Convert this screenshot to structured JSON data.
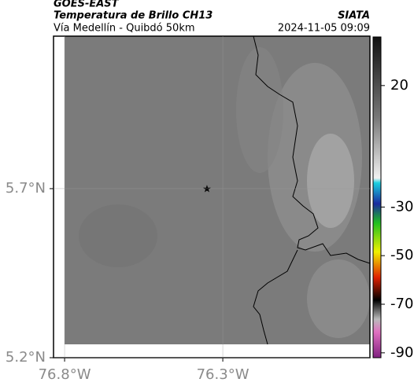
{
  "header": {
    "title": "GOES-EAST",
    "subtitle": "Temperatura de Brillo CH13",
    "source": "SIATA",
    "region": "Vía Medellín - Quibdó 50km",
    "datetime": "2024-11-05 09:09"
  },
  "map": {
    "xlim": [
      -76.835,
      -75.835
    ],
    "ylim": [
      5.2,
      6.151
    ],
    "xticks": [
      {
        "value": -76.8,
        "label": "76.8°W"
      },
      {
        "value": -76.3,
        "label": "76.3°W"
      }
    ],
    "yticks": [
      {
        "value": 5.2,
        "label": "5.2°N"
      },
      {
        "value": 5.7,
        "label": "5.7°N"
      }
    ],
    "colorbar": {
      "lim": [
        -92,
        40
      ],
      "ticks": [
        20,
        -30,
        -50,
        -70,
        -90
      ]
    }
  }
}
